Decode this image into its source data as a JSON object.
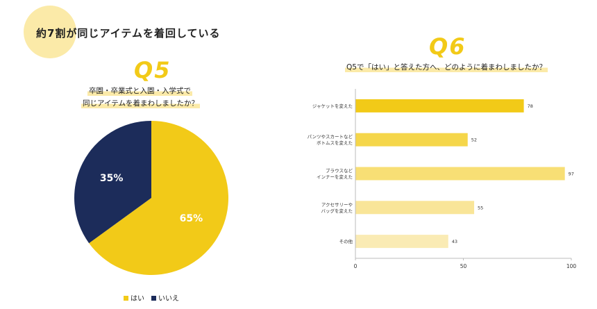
{
  "headline": "約7割が同じアイテムを着回している",
  "colors": {
    "accent": "#f2ca18",
    "navy": "#1c2c5a",
    "highlight": "#fbeaa8"
  },
  "q5": {
    "label": "Q5",
    "question_line1": "卒園・卒業式と入園・入学式で",
    "question_line2": "同じアイテムを着まわしましたか？",
    "legend": [
      {
        "name": "はい",
        "color": "#f2ca18"
      },
      {
        "name": "いいえ",
        "color": "#1c2c5a"
      }
    ]
  },
  "q6": {
    "label": "Q6",
    "question": "Q5で「はい」と答えた方へ、どのように着まわしましたか？"
  },
  "chart_data": [
    {
      "type": "pie",
      "slices": [
        {
          "name": "はい",
          "value": 65,
          "label": "65%",
          "color": "#f2ca18"
        },
        {
          "name": "いいえ",
          "value": 35,
          "label": "35%",
          "color": "#1c2c5a"
        }
      ],
      "legend_position": "bottom-center"
    },
    {
      "type": "bar",
      "orientation": "horizontal",
      "categories": [
        [
          "ジャケットを変えた"
        ],
        [
          "パンツやスカートなど",
          "ボトムスを変えた"
        ],
        [
          "ブラウスなど",
          "インナーを変えた"
        ],
        [
          "アクセサリーや",
          "バッグを変えた"
        ],
        [
          "その他"
        ]
      ],
      "values": [
        78,
        52,
        97,
        55,
        43
      ],
      "bar_colors": [
        "#f2ca18",
        "#f5d64a",
        "#f8df75",
        "#f9e598",
        "#faebb4"
      ],
      "xlim": [
        0,
        100
      ],
      "xticks": [
        0,
        50,
        100
      ],
      "grid": false
    }
  ]
}
